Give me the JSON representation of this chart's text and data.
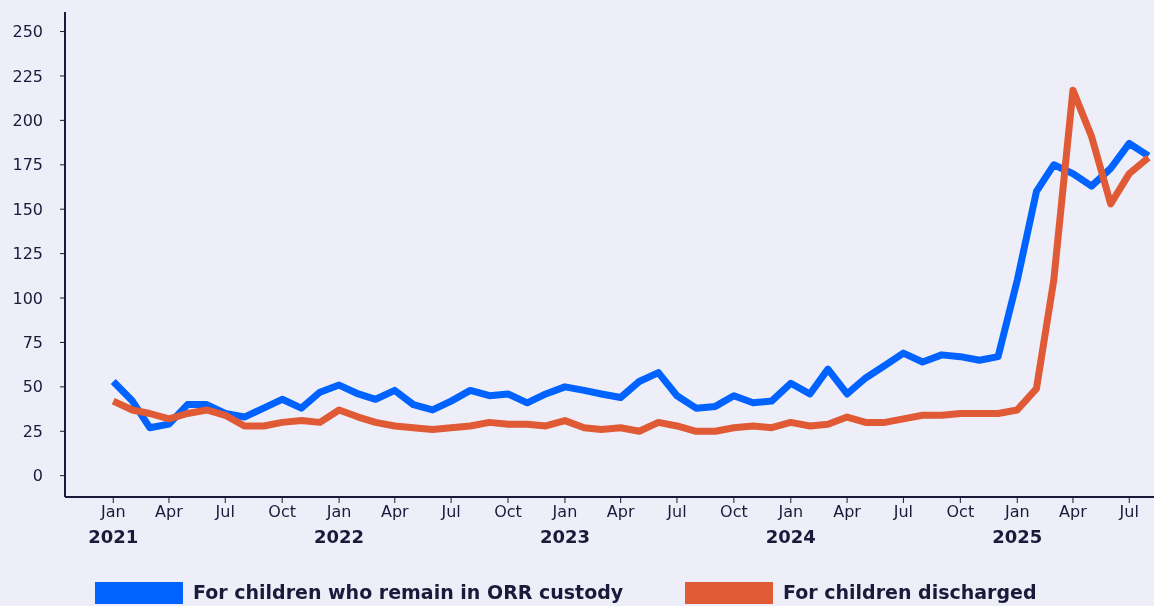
{
  "chart_data": {
    "type": "line",
    "x": [
      "2021-01",
      "2021-02",
      "2021-03",
      "2021-04",
      "2021-05",
      "2021-06",
      "2021-07",
      "2021-08",
      "2021-09",
      "2021-10",
      "2021-11",
      "2021-12",
      "2022-01",
      "2022-02",
      "2022-03",
      "2022-04",
      "2022-05",
      "2022-06",
      "2022-07",
      "2022-08",
      "2022-09",
      "2022-10",
      "2022-11",
      "2022-12",
      "2023-01",
      "2023-02",
      "2023-03",
      "2023-04",
      "2023-05",
      "2023-06",
      "2023-07",
      "2023-08",
      "2023-09",
      "2023-10",
      "2023-11",
      "2023-12",
      "2024-01",
      "2024-02",
      "2024-03",
      "2024-04",
      "2024-05",
      "2024-06",
      "2024-07",
      "2024-08",
      "2024-09",
      "2024-10",
      "2024-11",
      "2024-12",
      "2025-01",
      "2025-02",
      "2025-03",
      "2025-04",
      "2025-05",
      "2025-06",
      "2025-07",
      "2025-08"
    ],
    "series": [
      {
        "name": "For children who remain in ORR custody",
        "color": "#0062ff",
        "values": [
          53,
          42,
          27,
          29,
          40,
          40,
          35,
          33,
          38,
          43,
          38,
          47,
          51,
          46,
          43,
          48,
          40,
          37,
          42,
          48,
          45,
          46,
          41,
          46,
          50,
          48,
          46,
          44,
          53,
          58,
          45,
          38,
          39,
          45,
          41,
          42,
          52,
          46,
          60,
          46,
          55,
          62,
          69,
          64,
          68,
          67,
          65,
          67,
          110,
          160,
          175,
          170,
          163,
          173,
          187,
          180
        ]
      },
      {
        "name": "For children discharged",
        "color": "#e05a35",
        "values": [
          42,
          37,
          35,
          32,
          35,
          37,
          34,
          28,
          28,
          30,
          31,
          30,
          37,
          33,
          30,
          28,
          27,
          26,
          27,
          28,
          30,
          29,
          29,
          28,
          31,
          27,
          26,
          27,
          25,
          30,
          28,
          25,
          25,
          27,
          28,
          27,
          30,
          28,
          29,
          33,
          30,
          30,
          32,
          34,
          34,
          35,
          35,
          35,
          37,
          49,
          110,
          217,
          191,
          153,
          170,
          179
        ]
      }
    ],
    "xlim": [
      "2020-10-15",
      "2025-08-10"
    ],
    "xticks": [
      {
        "value": "2021-01",
        "label": "Jan\n2021"
      },
      {
        "value": "2021-04",
        "label": "Apr"
      },
      {
        "value": "2021-07",
        "label": "Jul"
      },
      {
        "value": "2021-10",
        "label": "Oct"
      },
      {
        "value": "2022-01",
        "label": "Jan\n2022"
      },
      {
        "value": "2022-04",
        "label": "Apr"
      },
      {
        "value": "2022-07",
        "label": "Jul"
      },
      {
        "value": "2022-10",
        "label": "Oct"
      },
      {
        "value": "2023-01",
        "label": "Jan\n2023"
      },
      {
        "value": "2023-04",
        "label": "Apr"
      },
      {
        "value": "2023-07",
        "label": "Jul"
      },
      {
        "value": "2023-10",
        "label": "Oct"
      },
      {
        "value": "2024-01",
        "label": "Jan\n2024"
      },
      {
        "value": "2024-04",
        "label": "Apr"
      },
      {
        "value": "2024-07",
        "label": "Jul"
      },
      {
        "value": "2024-10",
        "label": "Oct"
      },
      {
        "value": "2025-01",
        "label": "Jan\n2025"
      },
      {
        "value": "2025-04",
        "label": "Apr"
      },
      {
        "value": "2025-07",
        "label": "Jul"
      }
    ],
    "ylim": [
      -12,
      261
    ],
    "yticks": [
      0,
      25,
      50,
      75,
      100,
      125,
      150,
      175,
      200,
      225,
      250
    ],
    "grid": false,
    "legend": "bottom",
    "line_style": "solid",
    "marker": "none"
  }
}
